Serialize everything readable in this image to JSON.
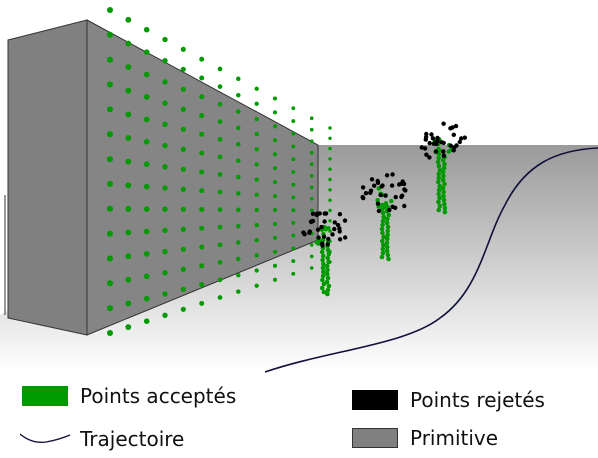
{
  "legend": {
    "accepted": {
      "label": "Points acceptés",
      "color": "#009900",
      "icon": "green-swatch"
    },
    "rejected": {
      "label": "Points rejetés",
      "color": "#000000",
      "icon": "black-swatch"
    },
    "trajectory": {
      "label": "Trajectoire",
      "color": "#10103c",
      "icon": "curve-line-icon"
    },
    "primitive": {
      "label": "Primitive",
      "color": "#808080",
      "icon": "gray-swatch"
    }
  },
  "colors": {
    "ground_top": "#9a9a9a",
    "ground_bottom": "#ffffff",
    "block_front": "#808080",
    "block_side": "#858585",
    "block_stroke": "#333333"
  }
}
